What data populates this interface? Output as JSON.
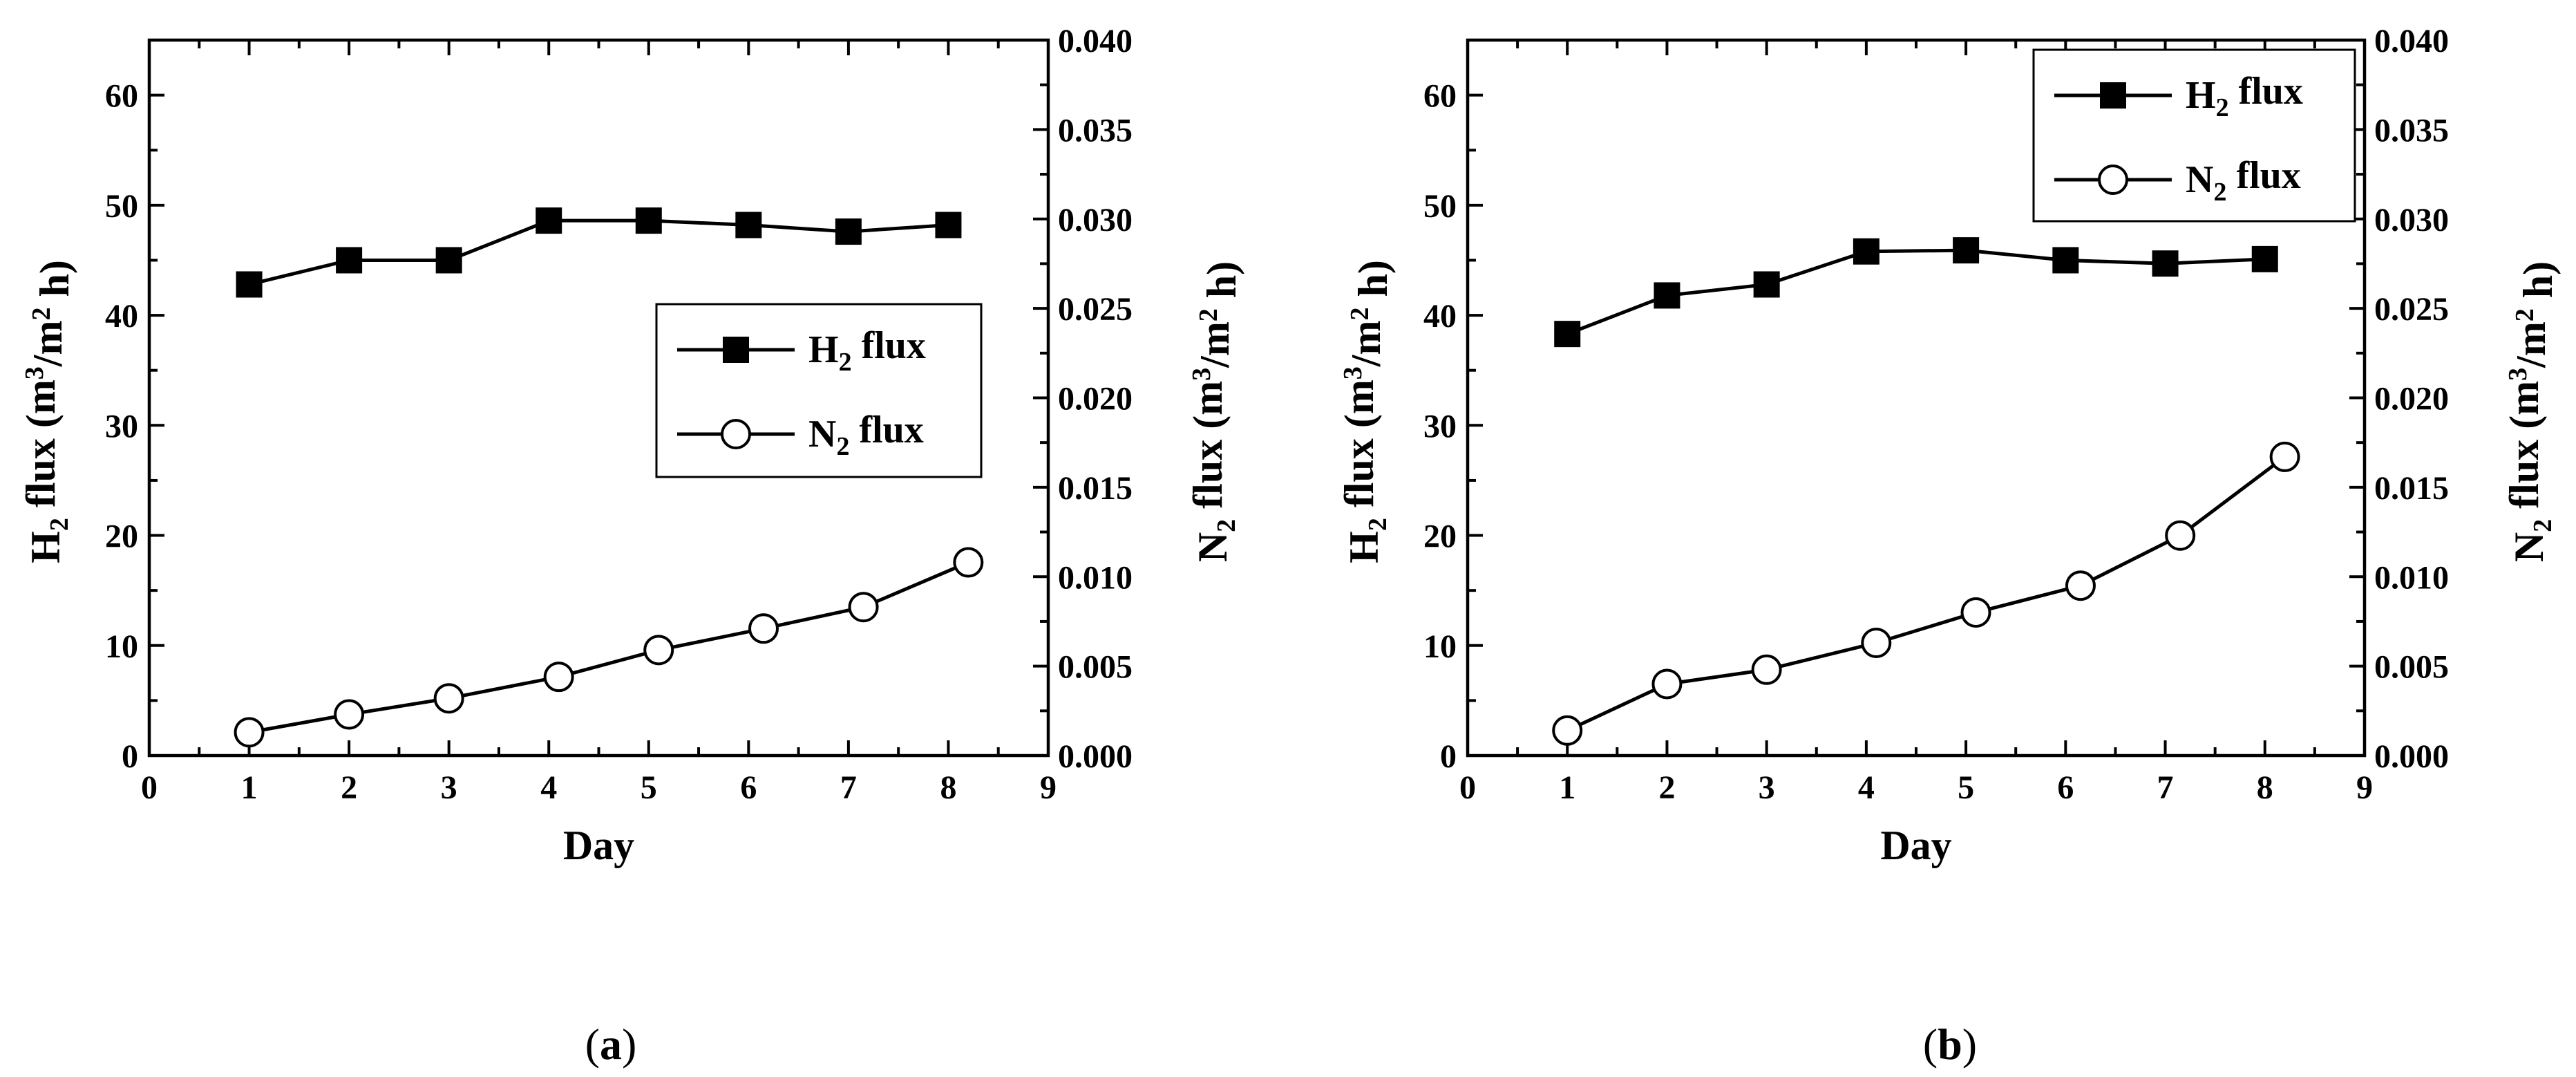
{
  "chart_data": [
    {
      "type": "line",
      "panel": "a",
      "caption_letter": "a",
      "xlabel": "Day",
      "ylabel_left": "H2 flux (m3/m2 h)",
      "ylabel_right": "N2 flux (m3/m2 h)",
      "xlim": [
        0,
        9
      ],
      "ylim_left": [
        0,
        65
      ],
      "ylim_right": [
        0,
        0.04
      ],
      "x_ticks": [
        0,
        1,
        2,
        3,
        4,
        5,
        6,
        7,
        8,
        9
      ],
      "y_left_ticks": [
        0,
        10,
        20,
        30,
        40,
        50,
        60
      ],
      "y_right_ticks": [
        "0.000",
        "0.005",
        "0.010",
        "0.015",
        "0.020",
        "0.025",
        "0.030",
        "0.035",
        "0.040"
      ],
      "legend_position": "center-right",
      "series": [
        {
          "name": "H2 flux",
          "axis": "left",
          "marker": "filled-square",
          "x": [
            1,
            2,
            3,
            4,
            5,
            6,
            7,
            8
          ],
          "values": [
            42.8,
            45.0,
            45.0,
            48.6,
            48.6,
            48.2,
            47.6,
            48.2
          ]
        },
        {
          "name": "N2 flux",
          "axis": "right",
          "marker": "open-circle",
          "x": [
            1,
            2,
            3,
            4.1,
            5.1,
            6.15,
            7.15,
            8.2
          ],
          "values": [
            0.0013,
            0.0023,
            0.0032,
            0.0044,
            0.0059,
            0.0071,
            0.0083,
            0.0108
          ]
        }
      ]
    },
    {
      "type": "line",
      "panel": "b",
      "caption_letter": "b",
      "xlabel": "Day",
      "ylabel_left": "H2 flux (m3/m2 h)",
      "ylabel_right": "N2 flux (m3/m2 h)",
      "xlim": [
        0,
        9
      ],
      "ylim_left": [
        0,
        65
      ],
      "ylim_right": [
        0,
        0.04
      ],
      "x_ticks": [
        0,
        1,
        2,
        3,
        4,
        5,
        6,
        7,
        8,
        9
      ],
      "y_left_ticks": [
        0,
        10,
        20,
        30,
        40,
        50,
        60
      ],
      "y_right_ticks": [
        "0.000",
        "0.005",
        "0.010",
        "0.015",
        "0.020",
        "0.025",
        "0.030",
        "0.035",
        "0.040"
      ],
      "legend_position": "top-right",
      "series": [
        {
          "name": "H2 flux",
          "axis": "left",
          "marker": "filled-square",
          "x": [
            1,
            2,
            3,
            4,
            5,
            6,
            7,
            8
          ],
          "values": [
            38.3,
            41.8,
            42.8,
            45.8,
            45.9,
            45.0,
            44.7,
            45.1
          ]
        },
        {
          "name": "N2 flux",
          "axis": "right",
          "marker": "open-circle",
          "x": [
            1,
            2,
            3,
            4.1,
            5.1,
            6.15,
            7.15,
            8.2
          ],
          "values": [
            0.0014,
            0.004,
            0.0048,
            0.0063,
            0.008,
            0.0095,
            0.0123,
            0.0167
          ]
        }
      ]
    }
  ]
}
